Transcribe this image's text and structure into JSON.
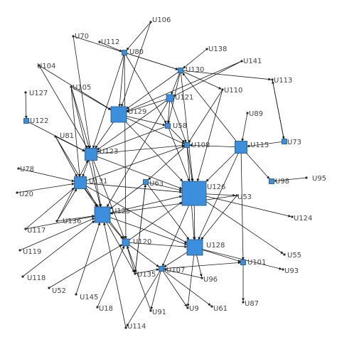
{
  "nodes": [
    {
      "id": "U106",
      "label": "U106",
      "kind": "dot"
    },
    {
      "id": "U70",
      "label": "U70",
      "kind": "dot"
    },
    {
      "id": "U112",
      "label": "U112",
      "kind": "dot"
    },
    {
      "id": "U80",
      "label": "U80",
      "kind": "box",
      "size": 1
    },
    {
      "id": "U138",
      "label": "U138",
      "kind": "dot"
    },
    {
      "id": "U141",
      "label": "U141",
      "kind": "dot"
    },
    {
      "id": "U104",
      "label": "U104",
      "kind": "dot"
    },
    {
      "id": "U130",
      "label": "U130",
      "kind": "box",
      "size": 1
    },
    {
      "id": "U113",
      "label": "U113",
      "kind": "dot"
    },
    {
      "id": "U105",
      "label": "U105",
      "kind": "dot"
    },
    {
      "id": "U127",
      "label": "U127",
      "kind": "dot"
    },
    {
      "id": "U121",
      "label": "U121",
      "kind": "box",
      "size": 2
    },
    {
      "id": "U110",
      "label": "U110",
      "kind": "dot"
    },
    {
      "id": "U129",
      "label": "U129",
      "kind": "box",
      "size": 4
    },
    {
      "id": "U122",
      "label": "U122",
      "kind": "box",
      "size": 1
    },
    {
      "id": "U89",
      "label": "U89",
      "kind": "dot"
    },
    {
      "id": "U58",
      "label": "U58",
      "kind": "box",
      "size": 1
    },
    {
      "id": "U81",
      "label": "U81",
      "kind": "dot"
    },
    {
      "id": "U115",
      "label": "U115",
      "kind": "box",
      "size": 3
    },
    {
      "id": "U73",
      "label": "U73",
      "kind": "box",
      "size": 1
    },
    {
      "id": "U108",
      "label": "U108",
      "kind": "box",
      "size": 1
    },
    {
      "id": "U123",
      "label": "U123",
      "kind": "box",
      "size": 3
    },
    {
      "id": "U78",
      "label": "U78",
      "kind": "dot"
    },
    {
      "id": "U98",
      "label": "U98",
      "kind": "box",
      "size": 1
    },
    {
      "id": "U95",
      "label": "U95",
      "kind": "dot"
    },
    {
      "id": "U131",
      "label": "U131",
      "kind": "box",
      "size": 3
    },
    {
      "id": "U63",
      "label": "U63",
      "kind": "box",
      "size": 1
    },
    {
      "id": "U126",
      "label": "U126",
      "kind": "box",
      "size": 5
    },
    {
      "id": "U20",
      "label": "U20",
      "kind": "dot"
    },
    {
      "id": "U53",
      "label": "U53",
      "kind": "dot"
    },
    {
      "id": "U125",
      "label": "U125",
      "kind": "box",
      "size": 4
    },
    {
      "id": "U136",
      "label": "U136",
      "kind": "dot"
    },
    {
      "id": "U124",
      "label": "U124",
      "kind": "dot"
    },
    {
      "id": "U117",
      "label": "U117",
      "kind": "dot"
    },
    {
      "id": "U120",
      "label": "U120",
      "kind": "box",
      "size": 2
    },
    {
      "id": "U128",
      "label": "U128",
      "kind": "box",
      "size": 4
    },
    {
      "id": "U119",
      "label": "U119",
      "kind": "dot"
    },
    {
      "id": "U55",
      "label": "U55",
      "kind": "dot"
    },
    {
      "id": "U101",
      "label": "U101",
      "kind": "box",
      "size": 1
    },
    {
      "id": "U135",
      "label": "U135",
      "kind": "dot"
    },
    {
      "id": "U107",
      "label": "U107",
      "kind": "box",
      "size": 1
    },
    {
      "id": "U93",
      "label": "U93",
      "kind": "dot"
    },
    {
      "id": "U118",
      "label": "U118",
      "kind": "dot"
    },
    {
      "id": "U96",
      "label": "U96",
      "kind": "dot"
    },
    {
      "id": "U52",
      "label": "U52",
      "kind": "dot"
    },
    {
      "id": "U145",
      "label": "U145",
      "kind": "dot"
    },
    {
      "id": "U18",
      "label": "U18",
      "kind": "dot"
    },
    {
      "id": "U87",
      "label": "U87",
      "kind": "dot"
    },
    {
      "id": "U91",
      "label": "U91",
      "kind": "dot"
    },
    {
      "id": "U9",
      "label": "U9",
      "kind": "dot"
    },
    {
      "id": "U61",
      "label": "U61",
      "kind": "dot"
    },
    {
      "id": "U114",
      "label": "U114",
      "kind": "dot"
    }
  ],
  "edges": [
    [
      "U106",
      "U129"
    ],
    [
      "U106",
      "U80"
    ],
    [
      "U70",
      "U123"
    ],
    [
      "U70",
      "U130"
    ],
    [
      "U112",
      "U80"
    ],
    [
      "U80",
      "U129"
    ],
    [
      "U80",
      "U130"
    ],
    [
      "U80",
      "U120"
    ],
    [
      "U80",
      "U123"
    ],
    [
      "U80",
      "U58"
    ],
    [
      "U138",
      "U130"
    ],
    [
      "U141",
      "U121"
    ],
    [
      "U141",
      "U129"
    ],
    [
      "U104",
      "U123"
    ],
    [
      "U104",
      "U129"
    ],
    [
      "U130",
      "U129"
    ],
    [
      "U130",
      "U121"
    ],
    [
      "U130",
      "U113"
    ],
    [
      "U130",
      "U110"
    ],
    [
      "U130",
      "U58"
    ],
    [
      "U130",
      "U126"
    ],
    [
      "U113",
      "U73"
    ],
    [
      "U105",
      "U123"
    ],
    [
      "U105",
      "U131"
    ],
    [
      "U105",
      "U129"
    ],
    [
      "U105",
      "U125"
    ],
    [
      "U127",
      "U122"
    ],
    [
      "U121",
      "U129"
    ],
    [
      "U121",
      "U58"
    ],
    [
      "U121",
      "U108"
    ],
    [
      "U121",
      "U123"
    ],
    [
      "U121",
      "U125"
    ],
    [
      "U110",
      "U126"
    ],
    [
      "U110",
      "U108"
    ],
    [
      "U129",
      "U123"
    ],
    [
      "U129",
      "U58"
    ],
    [
      "U129",
      "U126"
    ],
    [
      "U129",
      "U108"
    ],
    [
      "U122",
      "U123"
    ],
    [
      "U89",
      "U115"
    ],
    [
      "U58",
      "U108"
    ],
    [
      "U58",
      "U123"
    ],
    [
      "U58",
      "U126"
    ],
    [
      "U81",
      "U123"
    ],
    [
      "U81",
      "U131"
    ],
    [
      "U81",
      "U125"
    ],
    [
      "U115",
      "U126"
    ],
    [
      "U115",
      "U101"
    ],
    [
      "U115",
      "U98"
    ],
    [
      "U115",
      "U128"
    ],
    [
      "U115",
      "U108"
    ],
    [
      "U115",
      "U130"
    ],
    [
      "U73",
      "U115"
    ],
    [
      "U73",
      "U113"
    ],
    [
      "U108",
      "U126"
    ],
    [
      "U108",
      "U63"
    ],
    [
      "U108",
      "U128"
    ],
    [
      "U123",
      "U131"
    ],
    [
      "U123",
      "U126"
    ],
    [
      "U123",
      "U108"
    ],
    [
      "U123",
      "U125"
    ],
    [
      "U123",
      "U120"
    ],
    [
      "U78",
      "U131"
    ],
    [
      "U95",
      "U98"
    ],
    [
      "U131",
      "U125"
    ],
    [
      "U131",
      "U126"
    ],
    [
      "U131",
      "U108"
    ],
    [
      "U131",
      "U120"
    ],
    [
      "U131",
      "U128"
    ],
    [
      "U63",
      "U126"
    ],
    [
      "U63",
      "U128"
    ],
    [
      "U63",
      "U135"
    ],
    [
      "U63",
      "U125"
    ],
    [
      "U126",
      "U128"
    ],
    [
      "U126",
      "U107"
    ],
    [
      "U126",
      "U124"
    ],
    [
      "U126",
      "U53"
    ],
    [
      "U126",
      "U55"
    ],
    [
      "U20",
      "U131"
    ],
    [
      "U53",
      "U128"
    ],
    [
      "U53",
      "U125"
    ],
    [
      "U125",
      "U120"
    ],
    [
      "U125",
      "U128"
    ],
    [
      "U125",
      "U126"
    ],
    [
      "U125",
      "U135"
    ],
    [
      "U136",
      "U131"
    ],
    [
      "U136",
      "U125"
    ],
    [
      "U136",
      "U123"
    ],
    [
      "U117",
      "U131"
    ],
    [
      "U117",
      "U125"
    ],
    [
      "U120",
      "U128"
    ],
    [
      "U120",
      "U135"
    ],
    [
      "U120",
      "U126"
    ],
    [
      "U120",
      "U107"
    ],
    [
      "U128",
      "U107"
    ],
    [
      "U128",
      "U101"
    ],
    [
      "U128",
      "U93"
    ],
    [
      "U128",
      "U96"
    ],
    [
      "U128",
      "U9"
    ],
    [
      "U119",
      "U125"
    ],
    [
      "U107",
      "U101"
    ],
    [
      "U107",
      "U91"
    ],
    [
      "U107",
      "U9"
    ],
    [
      "U107",
      "U61"
    ],
    [
      "U107",
      "U114"
    ],
    [
      "U118",
      "U125"
    ],
    [
      "U52",
      "U120"
    ],
    [
      "U145",
      "U125"
    ],
    [
      "U18",
      "U120"
    ],
    [
      "U101",
      "U87"
    ],
    [
      "U96",
      "U107"
    ],
    [
      "U114",
      "U125"
    ],
    [
      "U135",
      "U107"
    ],
    [
      "U135",
      "U63"
    ],
    [
      "U91",
      "U120"
    ]
  ]
}
